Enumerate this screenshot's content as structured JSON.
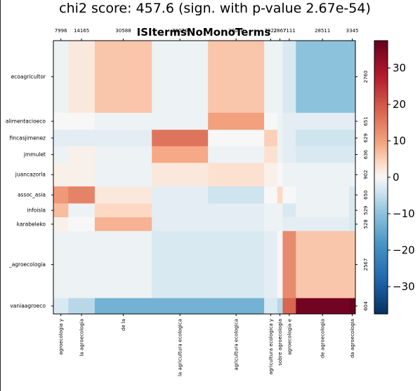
{
  "chart_data": {
    "type": "heatmap",
    "title": "chi2 score: 457.6 (sign. with p-value 2.67e-54)",
    "subtitle": "ISItermsNoMonoTerms",
    "columns": [
      {
        "label": "agroecologia y",
        "count": "7996",
        "weight": 7996
      },
      {
        "label": "la agroecologia",
        "count": "14165",
        "weight": 14165
      },
      {
        "label": "de la",
        "count": "30588",
        "weight": 30588
      },
      {
        "label": "la agricultura ecologica",
        "count": "30070",
        "weight": 30070
      },
      {
        "label": "agricultura ecologica",
        "count": "30070",
        "weight": 30070
      },
      {
        "label": "agricultura ecologica y",
        "count": "7022",
        "weight": 7022
      },
      {
        "label": "sobre agroecologia",
        "count": "2867",
        "weight": 2867
      },
      {
        "label": "agroecologia e",
        "count": "7111",
        "weight": 7111
      },
      {
        "label": "de agroecologia",
        "count": "28511",
        "weight": 28511
      },
      {
        "label": "da agroecologia",
        "count": "3345",
        "weight": 3345
      }
    ],
    "rows": [
      {
        "label": "ecoagricultor",
        "count": "2760",
        "weight": 2760
      },
      {
        "label": "alimentacioeco",
        "count": "651",
        "weight": 651
      },
      {
        "label": "fincasjimenez",
        "count": "629",
        "weight": 629
      },
      {
        "label": "jmmulet",
        "count": "636",
        "weight": 636
      },
      {
        "label": "juancazorla",
        "count": "902",
        "weight": 902
      },
      {
        "label": "assoc_asia",
        "count": "650",
        "weight": 650
      },
      {
        "label": "infoisla",
        "count": "529",
        "weight": 529
      },
      {
        "label": "karabeleko",
        "count": "528",
        "weight": 528
      },
      {
        "label": "_agroecologia",
        "count": "2567",
        "weight": 2567
      },
      {
        "label": "vaniaagroeco",
        "count": "604",
        "weight": 604
      }
    ],
    "values": [
      [
        -1,
        2,
        6,
        -1,
        6,
        -1,
        -1,
        -3,
        -10,
        -10
      ],
      [
        0,
        0,
        -1,
        -1,
        10,
        0,
        -1,
        -2,
        -2,
        -2
      ],
      [
        -2,
        -2,
        -2,
        16,
        0,
        5,
        -1,
        -2,
        -4,
        -4
      ],
      [
        -1,
        1,
        -1,
        9,
        -1,
        3,
        -1,
        -2,
        -3,
        -3
      ],
      [
        1,
        1,
        -1,
        2,
        3,
        1,
        0,
        -1,
        -1,
        -1
      ],
      [
        11,
        14,
        2,
        -2,
        -4,
        0,
        4,
        0,
        -1,
        -3
      ],
      [
        7,
        -1,
        4,
        -2,
        -2,
        -1,
        -1,
        -3,
        -1,
        -3
      ],
      [
        1,
        0,
        8,
        -2,
        -2,
        -1,
        -1,
        -2,
        -2,
        -3
      ],
      [
        -1,
        -1,
        -1,
        -3,
        -3,
        -2,
        0,
        13,
        6,
        6
      ],
      [
        -3,
        -6,
        -13,
        -13,
        -13,
        -3,
        -6,
        18,
        36,
        40
      ]
    ],
    "colorbar": {
      "min": -37.5,
      "max": 37.5,
      "ticks": [
        30,
        20,
        10,
        0,
        -10,
        -20,
        -30
      ],
      "colormap": "RdBu_r"
    },
    "colors": {
      "strong_pos": "#67001f",
      "pos": "#d6604d",
      "neutral": "#f7f7f7",
      "neg": "#4393c3",
      "strong_neg": "#053061"
    }
  }
}
